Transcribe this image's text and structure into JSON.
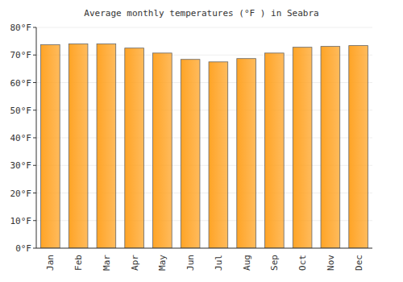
{
  "chart_data": {
    "type": "bar",
    "title": "Average monthly temperatures (°F ) in Seabra",
    "categories": [
      "Jan",
      "Feb",
      "Mar",
      "Apr",
      "May",
      "Jun",
      "Jul",
      "Aug",
      "Sep",
      "Oct",
      "Nov",
      "Dec"
    ],
    "values": [
      73.7,
      74.0,
      74.0,
      72.5,
      70.7,
      68.4,
      67.5,
      68.7,
      70.7,
      72.8,
      73.1,
      73.4
    ],
    "color": "#ffa426",
    "ylim": [
      0,
      80
    ],
    "yticks": [
      {
        "value": 0,
        "label": "0°F"
      },
      {
        "value": 10,
        "label": "10°F"
      },
      {
        "value": 20,
        "label": "20°F"
      },
      {
        "value": 30,
        "label": "30°F"
      },
      {
        "value": 40,
        "label": "40°F"
      },
      {
        "value": 50,
        "label": "50°F"
      },
      {
        "value": 60,
        "label": "60°F"
      },
      {
        "value": 70,
        "label": "70°F"
      },
      {
        "value": 80,
        "label": "80°F"
      }
    ],
    "grid": true
  }
}
